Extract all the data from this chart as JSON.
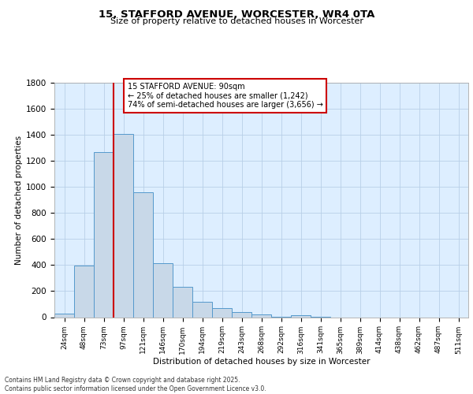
{
  "title": "15, STAFFORD AVENUE, WORCESTER, WR4 0TA",
  "subtitle": "Size of property relative to detached houses in Worcester",
  "xlabel": "Distribution of detached houses by size in Worcester",
  "ylabel": "Number of detached properties",
  "bar_labels": [
    "24sqm",
    "48sqm",
    "73sqm",
    "97sqm",
    "121sqm",
    "146sqm",
    "170sqm",
    "194sqm",
    "219sqm",
    "243sqm",
    "268sqm",
    "292sqm",
    "316sqm",
    "341sqm",
    "365sqm",
    "389sqm",
    "414sqm",
    "438sqm",
    "462sqm",
    "487sqm",
    "511sqm"
  ],
  "bar_values": [
    25,
    395,
    1265,
    1405,
    960,
    415,
    235,
    120,
    70,
    42,
    20,
    5,
    15,
    5,
    0,
    0,
    0,
    0,
    0,
    0,
    0
  ],
  "bar_color": "#c8d8e8",
  "bar_edge_color": "#5599cc",
  "grid_color": "#c8d8e8",
  "background_color": "#ddeeff",
  "vline_x": 2.5,
  "vline_color": "#cc0000",
  "annotation_text": "15 STAFFORD AVENUE: 90sqm\n← 25% of detached houses are smaller (1,242)\n74% of semi-detached houses are larger (3,656) →",
  "annotation_box_color": "#ffffff",
  "annotation_box_edge": "#cc0000",
  "ylim": [
    0,
    1800
  ],
  "yticks": [
    0,
    200,
    400,
    600,
    800,
    1000,
    1200,
    1400,
    1600,
    1800
  ],
  "footer_line1": "Contains HM Land Registry data © Crown copyright and database right 2025.",
  "footer_line2": "Contains public sector information licensed under the Open Government Licence v3.0."
}
